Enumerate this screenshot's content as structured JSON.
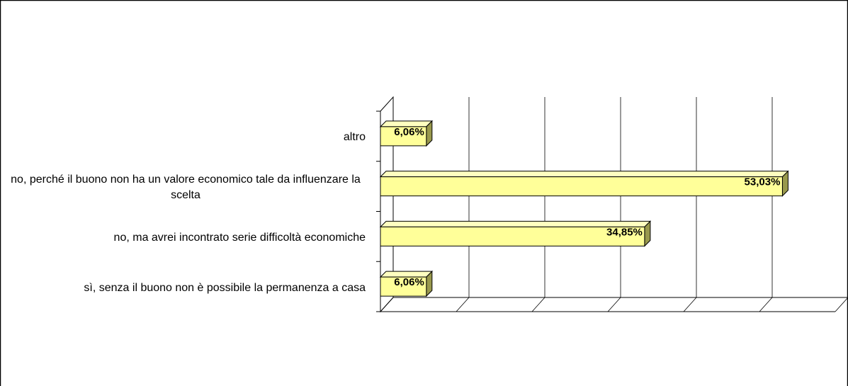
{
  "chart_data": {
    "type": "bar3d_horizontal",
    "categories": [
      "sì, senza il buono non è possibile la permanenza a casa",
      "no, ma avrei incontrato serie difficoltà economiche",
      "no, perché il buono non ha un valore economico tale da influenzare la scelta",
      "altro"
    ],
    "values": [
      6.06,
      34.85,
      53.03,
      6.06
    ],
    "value_labels": [
      "6,06%",
      "34,85%",
      "53,03%",
      "6,06%"
    ],
    "color": "#ffff99",
    "xlim": [
      0,
      60
    ],
    "xticks": [
      0,
      10,
      20,
      30,
      40,
      50,
      60
    ],
    "grid": true
  }
}
